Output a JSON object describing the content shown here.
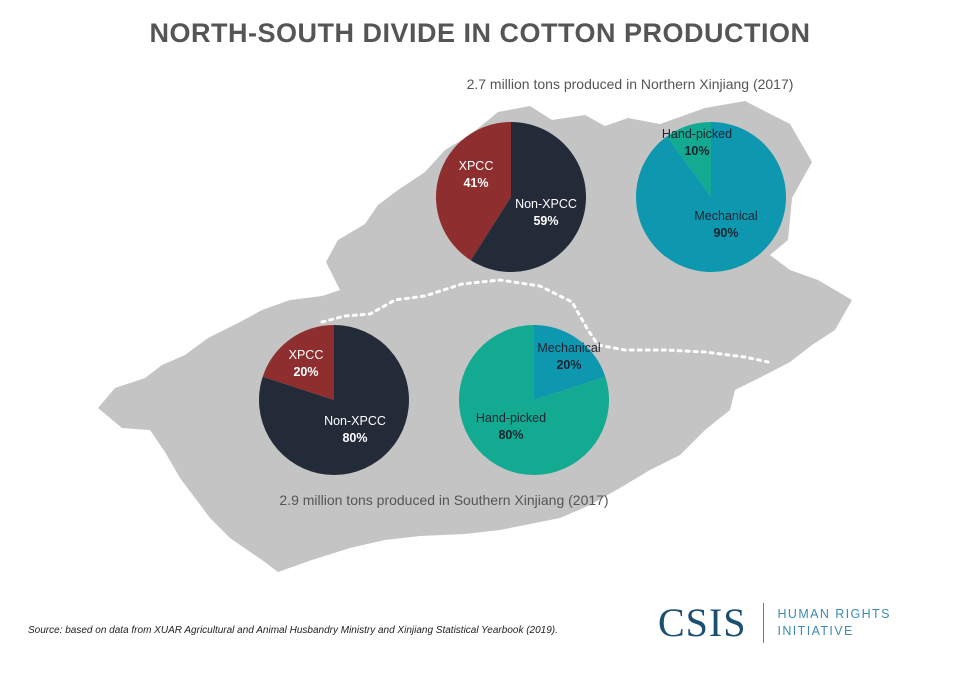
{
  "title": "NORTH-SOUTH DIVIDE IN COTTON PRODUCTION",
  "colors": {
    "xpcc": "#8e2e2f",
    "non_xpcc": "#232a38",
    "mechanical": "#0e98b0",
    "hand_picked": "#13aa92",
    "map": "#c4c4c4"
  },
  "chart_data": [
    {
      "type": "pie",
      "region": "Northern Xinjiang",
      "metric": "ownership",
      "caption": "2.7 million tons produced in Northern Xinjiang (2017)",
      "slices": [
        {
          "label": "XPCC",
          "pct": "41%",
          "value": 41
        },
        {
          "label": "Non-XPCC",
          "pct": "59%",
          "value": 59
        }
      ]
    },
    {
      "type": "pie",
      "region": "Northern Xinjiang",
      "metric": "harvest method",
      "slices": [
        {
          "label": "Hand-picked",
          "pct": "10%",
          "value": 10
        },
        {
          "label": "Mechanical",
          "pct": "90%",
          "value": 90
        }
      ]
    },
    {
      "type": "pie",
      "region": "Southern Xinjiang",
      "metric": "ownership",
      "caption": "2.9 million tons produced in Southern Xinjiang (2017)",
      "slices": [
        {
          "label": "XPCC",
          "pct": "20%",
          "value": 20
        },
        {
          "label": "Non-XPCC",
          "pct": "80%",
          "value": 80
        }
      ]
    },
    {
      "type": "pie",
      "region": "Southern Xinjiang",
      "metric": "harvest method",
      "slices": [
        {
          "label": "Mechanical",
          "pct": "20%",
          "value": 20
        },
        {
          "label": "Hand-picked",
          "pct": "80%",
          "value": 80
        }
      ]
    }
  ],
  "source": "Source: based on data from XUAR Agricultural and Animal Husbandry Ministry and Xinjiang Statistical Yearbook (2019).",
  "brand": {
    "logo": "CSIS",
    "line1": "HUMAN RIGHTS",
    "line2": "INITIATIVE"
  }
}
